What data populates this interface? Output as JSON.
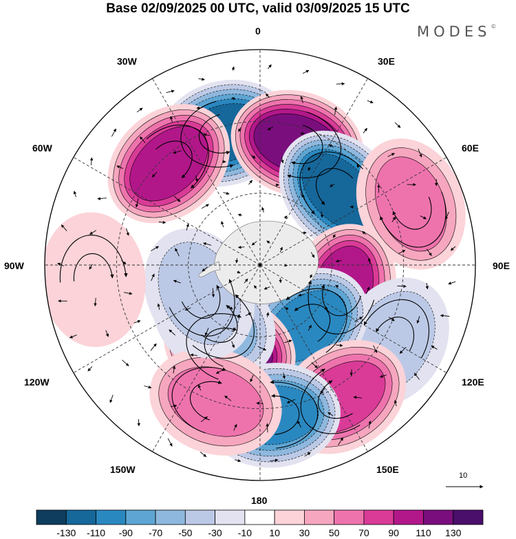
{
  "title": "Base 02/09/2025 00 UTC, valid 03/09/2025 15 UTC",
  "brand": "MODES",
  "brand_mark": "©",
  "longitude_labels": {
    "lon_0": "0",
    "lon_30e": "30E",
    "lon_60e": "60E",
    "lon_90e": "90E",
    "lon_120e": "120E",
    "lon_150e": "150E",
    "lon_180": "180",
    "lon_150w": "150W",
    "lon_120w": "120W",
    "lon_90w": "90W",
    "lon_60w": "60W",
    "lon_30w": "30W"
  },
  "vector_scale_label": "10",
  "colorbar": {
    "labels": [
      "-130",
      "-110",
      "-90",
      "-70",
      "-50",
      "-30",
      "-10",
      "10",
      "30",
      "50",
      "70",
      "90",
      "110",
      "130"
    ],
    "colors": [
      "#0e3d5e",
      "#16679a",
      "#2a88c0",
      "#5ea5d3",
      "#8fb8de",
      "#bcc9e6",
      "#e2e2f0",
      "#ffffff",
      "#fbd3d8",
      "#f6a6bf",
      "#ee73ad",
      "#d93b97",
      "#b2178a",
      "#7a0e7d",
      "#4a0e6b"
    ]
  },
  "anomaly_centers": [
    {
      "value": -120,
      "lon": -15,
      "lat": -33
    },
    {
      "value": 120,
      "lon": 17,
      "lat": -37
    },
    {
      "value": 90,
      "lon": -42,
      "lat": -33
    },
    {
      "value": -110,
      "lon": 47,
      "lat": -45
    },
    {
      "value": 50,
      "lon": 68,
      "lat": -22
    },
    {
      "value": 90,
      "lon": 107,
      "lat": -54
    },
    {
      "value": -40,
      "lon": 120,
      "lat": -26
    },
    {
      "value": -100,
      "lon": 143,
      "lat": -58
    },
    {
      "value": 110,
      "lon": -160,
      "lat": -53
    },
    {
      "value": -50,
      "lon": -140,
      "lat": -60
    },
    {
      "value": 80,
      "lon": 148,
      "lat": -25
    },
    {
      "value": -90,
      "lon": 175,
      "lat": -27
    },
    {
      "value": 60,
      "lon": -162,
      "lat": -30
    },
    {
      "value": -30,
      "lon": -115,
      "lat": -62
    },
    {
      "value": 20,
      "lon": -95,
      "lat": -20
    }
  ]
}
